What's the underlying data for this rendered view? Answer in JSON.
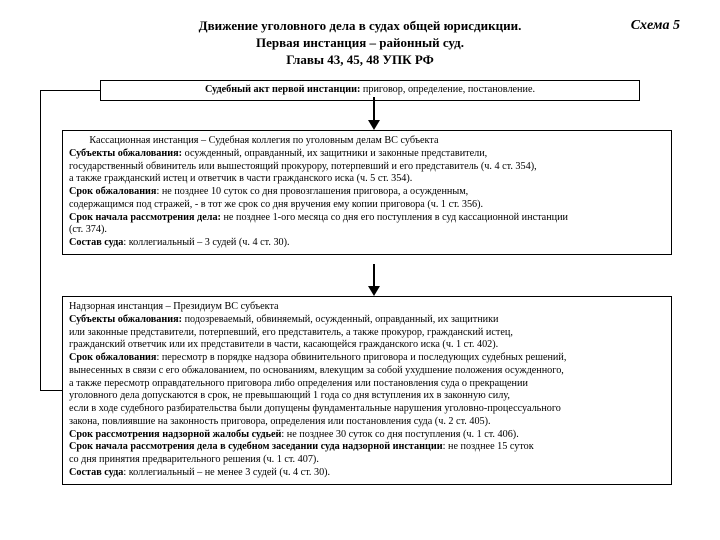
{
  "scheme_label": "Схема 5",
  "title_l1": "Движение уголовного дела в судах общей юрисдикции.",
  "title_l2": "Первая инстанция – районный суд.",
  "title_l3": "Главы 43, 45, 48 УПК РФ",
  "box1_bold": "Судебный акт первой инстанции:",
  "box1_rest": " приговор, определение, постановление.",
  "b2_l1": "Кассационная инстанция – Судебная коллегия по уголовным делам ВС субъекта",
  "b2_l2a": "Субъекты обжалования:",
  "b2_l2b": " осужденный, оправданный, их защитники и законные представители,",
  "b2_l3": "государственный обвинитель или вышестоящий прокурору, потерпевший и его представитель (ч. 4 ст. 354),",
  "b2_l4": "а также гражданский истец и ответчик в части гражданского иска (ч. 5 ст. 354).",
  "b2_l5a": "Срок обжалования",
  "b2_l5b": ": не позднее 10 суток со дня провозглашения приговора, а осужденным,",
  "b2_l6": "содержащимся под стражей, - в тот же срок со дня вручения ему копии приговора (ч. 1 ст. 356).",
  "b2_l7a": "Срок начала рассмотрения дела:",
  "b2_l7b": " не позднее 1-ого месяца со дня его поступления в суд кассационной инстанции",
  "b2_l8": "(ст. 374).",
  "b2_l9a": "Состав суда",
  "b2_l9b": ": коллегиальный – 3 судей (ч. 4 ст. 30).",
  "b3_l1": "Надзорная инстанция – Президиум ВС субъекта",
  "b3_l2a": "Субъекты обжалования:",
  "b3_l2b": " подозреваемый, обвиняемый, осужденный, оправданный, их защитники",
  "b3_l3": " или законные представители, потерпевший, его представитель, а также прокурор, гражданский истец,",
  "b3_l4": "гражданский ответчик или их представители в части, касающейся гражданского иска (ч. 1 ст. 402).",
  "b3_l5a": "Срок обжалования",
  "b3_l5b": ": пересмотр в порядке надзора обвинительного приговора и последующих судебных решений,",
  "b3_l6": "вынесенных в связи с его обжалованием, по основаниям, влекущим за собой ухудшение положения осужденного,",
  "b3_l7": "а также пересмотр оправдательного приговора либо определения или постановления суда о прекращении",
  "b3_l8": "уголовного дела допускаются в срок, не превышающий 1 года со дня вступления их в законную силу,",
  "b3_l9": "если в ходе судебного разбирательства были допущены фундаментальные нарушения уголовно-процессуального",
  "b3_l10": "закона, повлиявшие на законность приговора, определения или постановления суда (ч. 2 ст. 405).",
  "b3_l11a": "Срок рассмотрения надзорной жалобы судьей",
  "b3_l11b": ": не позднее 30 суток со дня поступления (ч. 1 ст. 406).",
  "b3_l12a": "Срок начала рассмотрения дела в судебном заседании суда надзорной инстанции",
  "b3_l12b": ": не позднее 15 суток",
  "b3_l13": "со дня принятия предварительного решения (ч. 1 ст. 407).",
  "b3_l14a": "Состав суда",
  "b3_l14b": ": коллегиальный – не менее 3 судей (ч. 4 ст. 30)."
}
